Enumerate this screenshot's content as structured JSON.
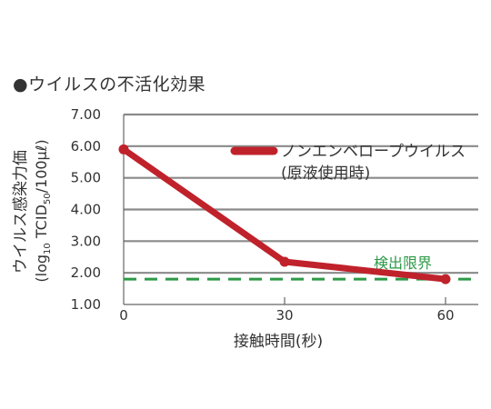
{
  "heading": "●ウイルスの不活化効果",
  "chart_data": {
    "type": "line",
    "ylabel_line1": "ウイルス感染力価",
    "ylabel_line2_parts": [
      "(log",
      "10",
      " TCID",
      "50",
      "/100",
      "μℓ",
      ")"
    ],
    "xlabel": "接触時間(秒)",
    "ylim": [
      1.0,
      7.0
    ],
    "xlim": [
      0,
      60
    ],
    "y_ticks": [
      "7.00",
      "6.00",
      "5.00",
      "4.00",
      "3.00",
      "2.00",
      "1.00"
    ],
    "x_ticks": [
      "0",
      "30",
      "60"
    ],
    "series": [
      {
        "name": "ノンエンベロープウイルス",
        "x": [
          0,
          30,
          60
        ],
        "values": [
          5.9,
          2.35,
          1.8
        ]
      }
    ],
    "legend_note": "(原液使用時)",
    "detection_limit": {
      "label": "検出限界",
      "value": 1.8
    },
    "grid": true,
    "legend_position": "top-right"
  },
  "colors": {
    "series": "#c0222b",
    "detection": "#2e9a48",
    "grid": "#8a8a8a",
    "axis": "#666666",
    "text": "#333333"
  }
}
